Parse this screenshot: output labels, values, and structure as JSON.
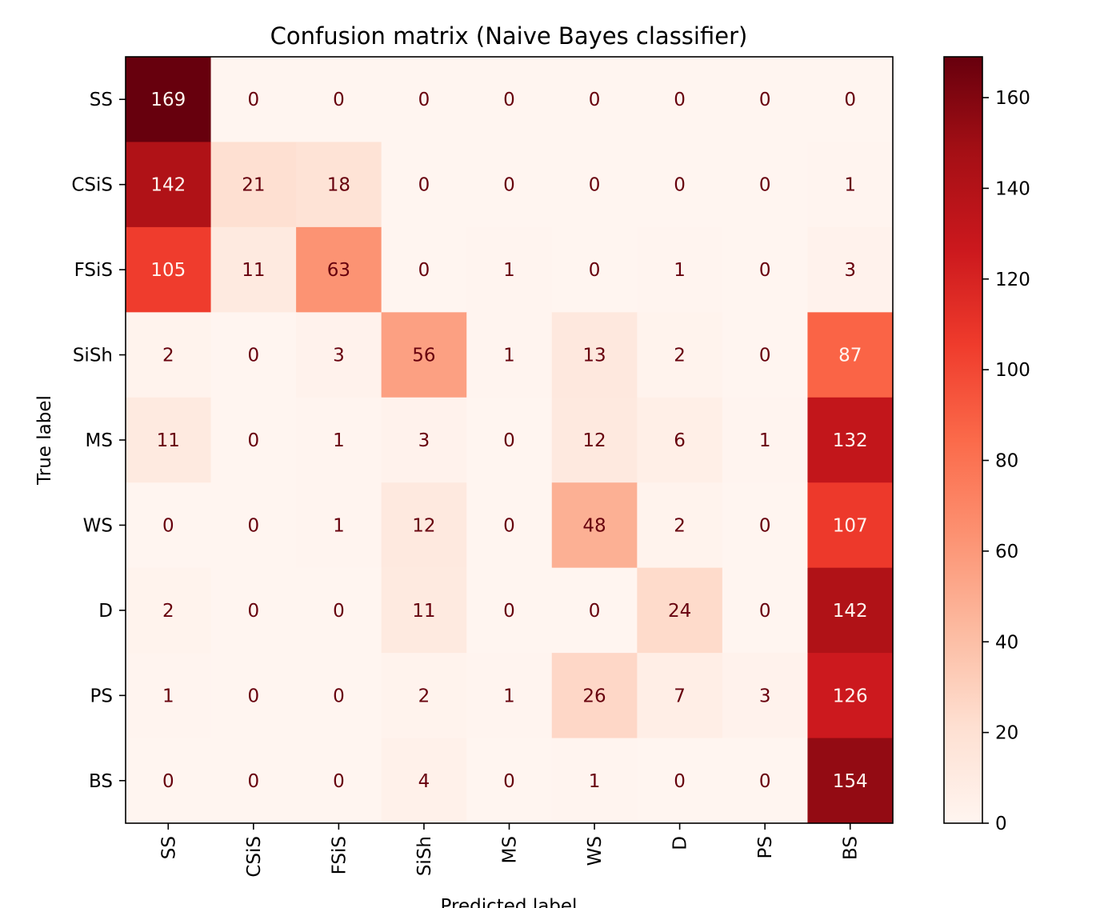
{
  "chart_data": {
    "type": "heatmap",
    "title": "Confusion matrix (Naive Bayes classifier)",
    "xlabel": "Predicted label",
    "ylabel": "True label",
    "x_categories": [
      "SS",
      "CSiS",
      "FSiS",
      "SiSh",
      "MS",
      "WS",
      "D",
      "PS",
      "BS"
    ],
    "y_categories": [
      "SS",
      "CSiS",
      "FSiS",
      "SiSh",
      "MS",
      "WS",
      "D",
      "PS",
      "BS"
    ],
    "values": [
      [
        169,
        0,
        0,
        0,
        0,
        0,
        0,
        0,
        0
      ],
      [
        142,
        21,
        18,
        0,
        0,
        0,
        0,
        0,
        1
      ],
      [
        105,
        11,
        63,
        0,
        1,
        0,
        1,
        0,
        3
      ],
      [
        2,
        0,
        3,
        56,
        1,
        13,
        2,
        0,
        87
      ],
      [
        11,
        0,
        1,
        3,
        0,
        12,
        6,
        1,
        132
      ],
      [
        0,
        0,
        1,
        12,
        0,
        48,
        2,
        0,
        107
      ],
      [
        2,
        0,
        0,
        11,
        0,
        0,
        24,
        0,
        142
      ],
      [
        1,
        0,
        0,
        2,
        1,
        26,
        7,
        3,
        126
      ],
      [
        0,
        0,
        0,
        4,
        0,
        1,
        0,
        0,
        154
      ]
    ],
    "colormap": "Reds",
    "color_range": [
      0,
      169
    ],
    "colorbar_ticks": [
      0,
      20,
      40,
      60,
      80,
      100,
      120,
      140,
      160
    ],
    "grid": false
  }
}
